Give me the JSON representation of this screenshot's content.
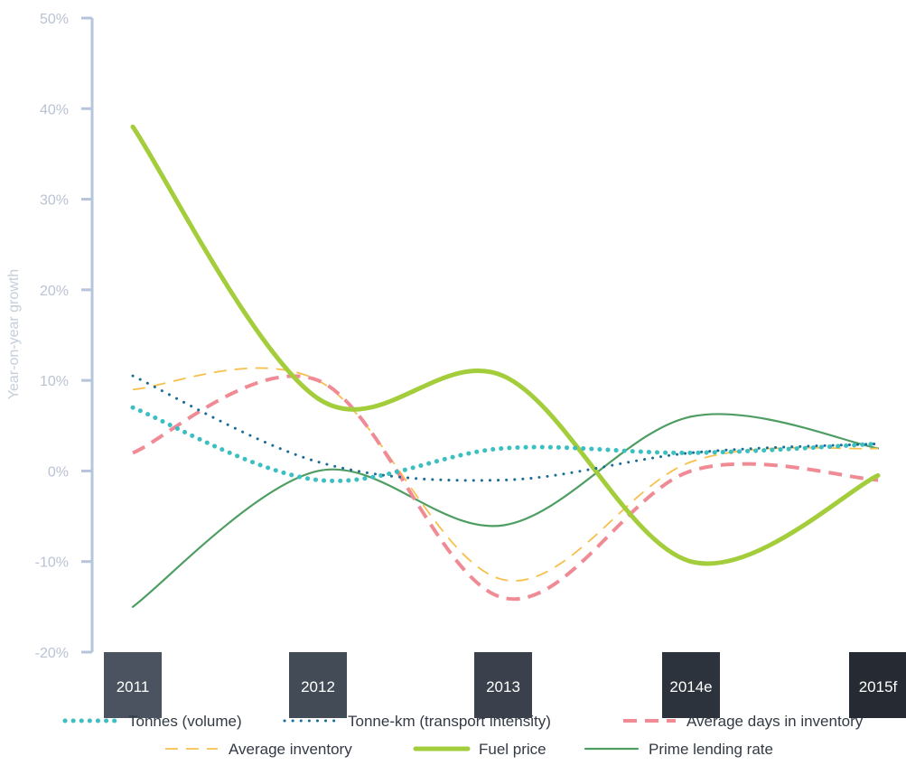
{
  "chart_data": {
    "type": "line",
    "ylabel": "Year-on-year growth",
    "ylim": [
      -20,
      50
    ],
    "y_ticks": [
      "50%",
      "40%",
      "30%",
      "20%",
      "10%",
      "0%",
      "-10%",
      "-20%"
    ],
    "y_tick_values": [
      50,
      40,
      30,
      20,
      10,
      0,
      -10,
      -20
    ],
    "categories": [
      "2011",
      "2012",
      "2013",
      "2014e",
      "2015f"
    ],
    "category_colors": [
      "#4b5360",
      "#434b57",
      "#3a414c",
      "#2d333c",
      "#262b33"
    ],
    "grid": false,
    "legend_position": "bottom",
    "series": [
      {
        "name": "Tonnes (volume)",
        "values": [
          7,
          -1,
          2.5,
          2,
          3
        ],
        "color": "#3bbfc0",
        "style": "dotted-heavy"
      },
      {
        "name": "Tonne-km (transport intensity)",
        "values": [
          10.5,
          1,
          -1,
          2,
          3
        ],
        "color": "#1b6d96",
        "style": "dotted"
      },
      {
        "name": "Average days in inventory",
        "values": [
          2,
          10,
          -14,
          0,
          -1
        ],
        "color": "#f08b95",
        "style": "dashed-heavy"
      },
      {
        "name": "Average inventory",
        "values": [
          9,
          10,
          -12,
          1,
          2.5
        ],
        "color": "#f7c04c",
        "style": "dashed"
      },
      {
        "name": "Fuel price",
        "values": [
          38,
          8,
          10.5,
          -10,
          -0.5
        ],
        "color": "#a3cd3b",
        "style": "solid-heavy"
      },
      {
        "name": "Prime lending rate",
        "values": [
          -15,
          0,
          -6,
          6,
          2.5
        ],
        "color": "#4e9e63",
        "style": "solid"
      }
    ]
  }
}
